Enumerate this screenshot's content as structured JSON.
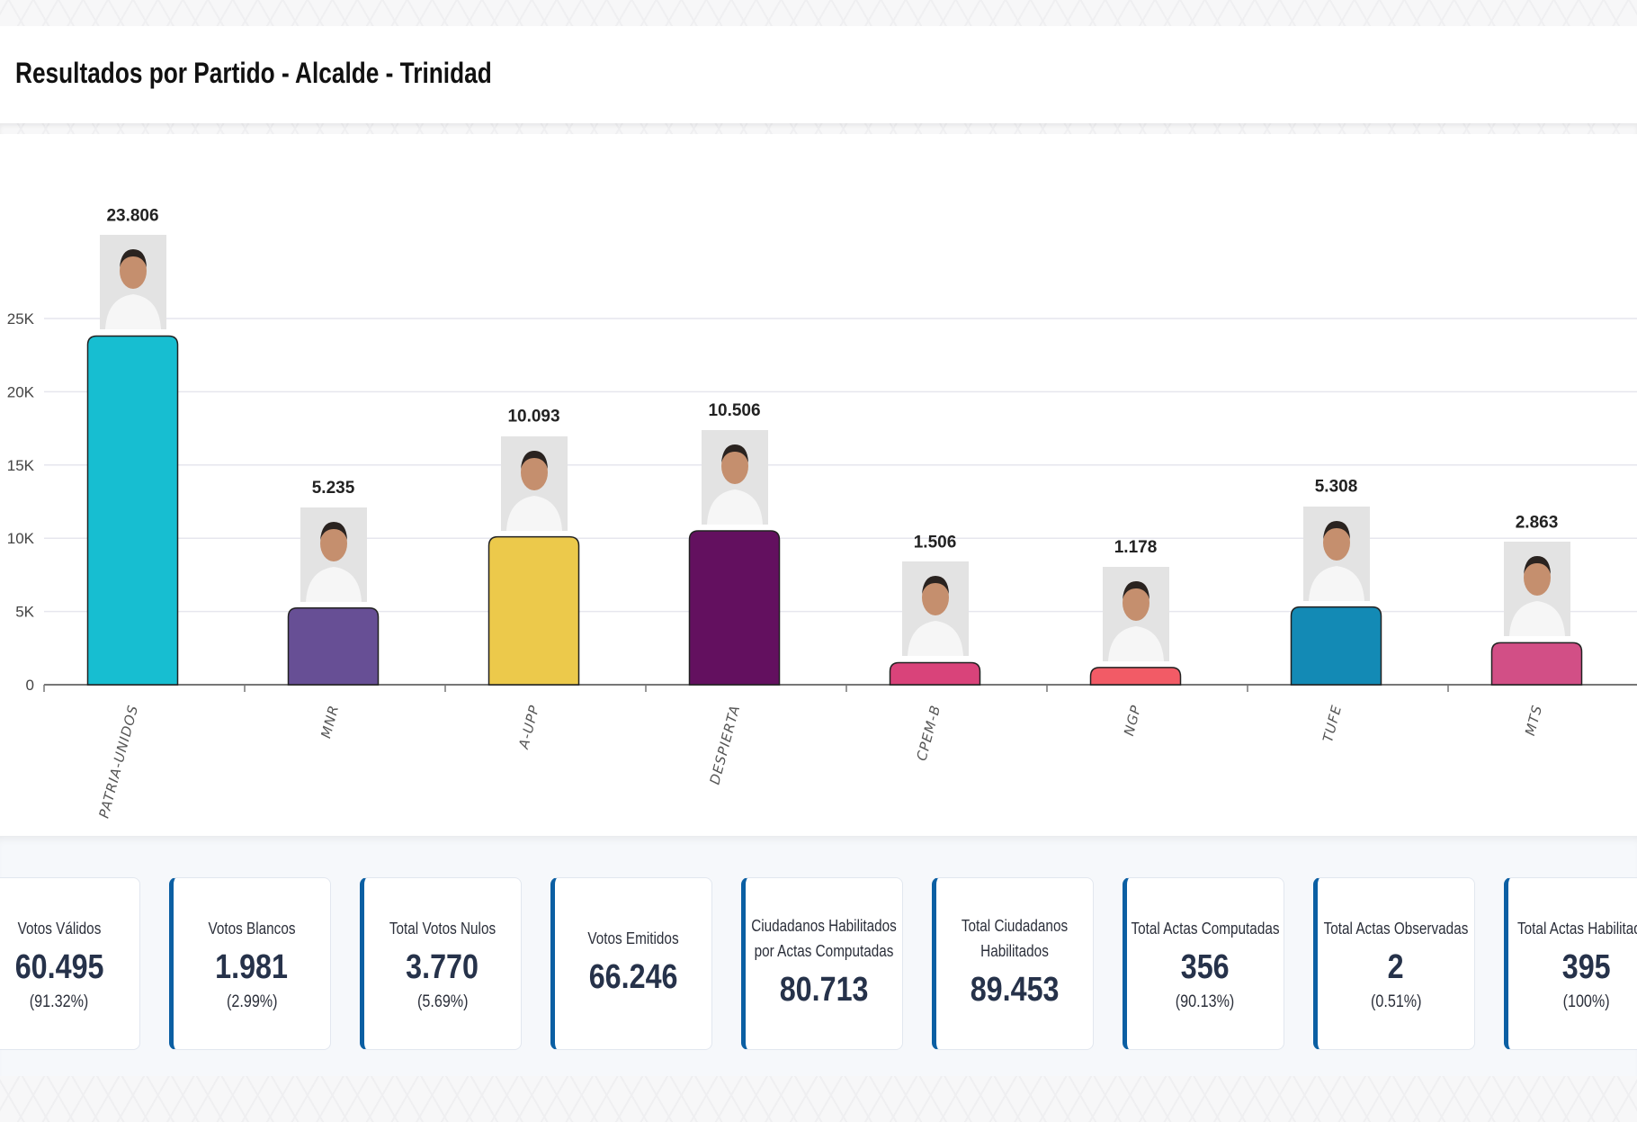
{
  "header": {
    "title": "Resultados por Partido - Alcalde - Trinidad"
  },
  "chart_data": {
    "type": "bar",
    "title": "Resultados por Partido - Alcalde - Trinidad",
    "categories": [
      "PATRIA-UNIDOS",
      "MNR",
      "A-UPP",
      "DESPIERTA",
      "CPEM-B",
      "NGP",
      "TUFE",
      "MTS"
    ],
    "values": [
      23806,
      5235,
      10093,
      10506,
      1506,
      1178,
      5308,
      2863
    ],
    "value_labels": [
      "23.806",
      "5.235",
      "10.093",
      "10.506",
      "1.506",
      "1.178",
      "5.308",
      "2.863"
    ],
    "colors": [
      "#17bed1",
      "#674f95",
      "#ecc94b",
      "#63105f",
      "#d9437a",
      "#f25b66",
      "#138ab5",
      "#d24f86"
    ],
    "yticks": [
      0,
      5000,
      10000,
      15000,
      20000,
      25000
    ],
    "ytick_labels": [
      "0",
      "5K",
      "10K",
      "15K",
      "20K",
      "25K"
    ],
    "ylim": [
      0,
      25000
    ],
    "grid": true,
    "xlabel": "",
    "ylabel": ""
  },
  "stats": [
    {
      "title": "Votos Válidos",
      "value": "60.495",
      "pct": "(91.32%)"
    },
    {
      "title": "Votos Blancos",
      "value": "1.981",
      "pct": "(2.99%)"
    },
    {
      "title": "Total Votos Nulos",
      "value": "3.770",
      "pct": "(5.69%)"
    },
    {
      "title": "Votos Emitidos",
      "value": "66.246",
      "pct": null
    },
    {
      "title": "Ciudadanos Habilitados por Actas Computadas",
      "value": "80.713",
      "pct": null
    },
    {
      "title": "Total Ciudadanos Habilitados",
      "value": "89.453",
      "pct": null
    },
    {
      "title": "Total Actas Computadas",
      "value": "356",
      "pct": "(90.13%)"
    },
    {
      "title": "Total Actas Observadas",
      "value": "2",
      "pct": "(0.51%)"
    },
    {
      "title": "Total Actas Habilitadas",
      "value": "395",
      "pct": "(100%)"
    }
  ]
}
